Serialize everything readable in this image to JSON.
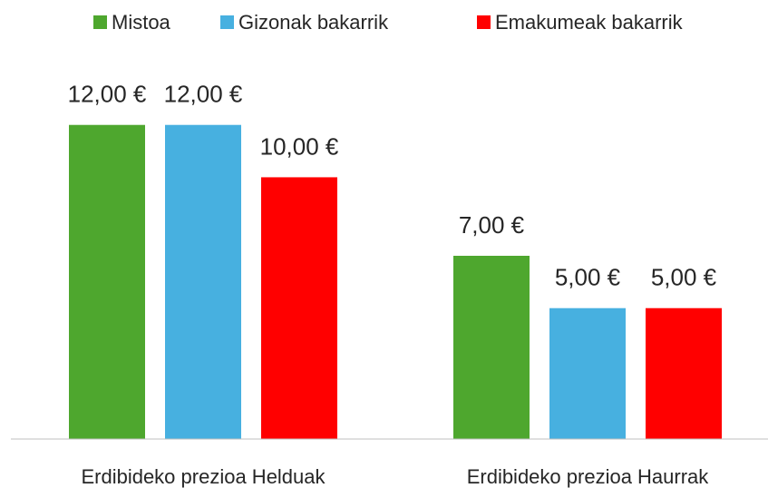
{
  "chart_data": {
    "type": "bar",
    "categories": [
      "Erdibideko prezioa Helduak",
      "Erdibideko prezioa Haurrak"
    ],
    "series": [
      {
        "name": "Mistoa",
        "color": "#4ea72e",
        "values": [
          12,
          7
        ],
        "value_labels": [
          "12,00 €",
          "7,00 €"
        ]
      },
      {
        "name": "Gizonak bakarrik",
        "color": "#47b0e0",
        "values": [
          12,
          5
        ],
        "value_labels": [
          "12,00 €",
          "5,00 €"
        ]
      },
      {
        "name": "Emakumeak bakarrik",
        "color": "#ff0000",
        "values": [
          10,
          5
        ],
        "value_labels": [
          "10,00 €",
          "5,00 €"
        ]
      }
    ],
    "ylim": [
      0,
      14
    ],
    "legend": "top"
  }
}
